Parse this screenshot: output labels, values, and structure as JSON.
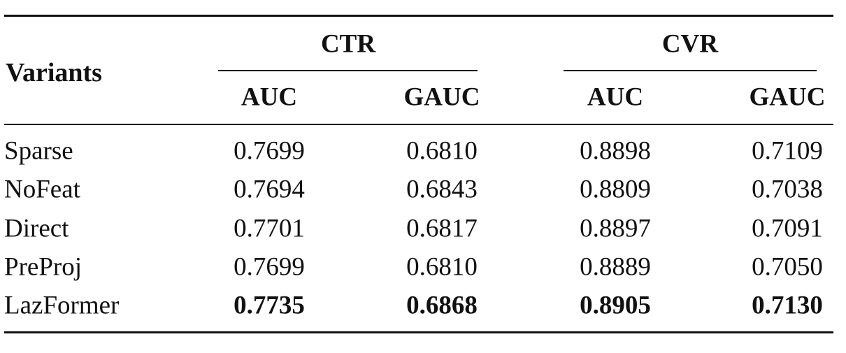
{
  "table": {
    "row_header": "Variants",
    "groups": [
      "CTR",
      "CVR"
    ],
    "columns": [
      "AUC",
      "GAUC",
      "AUC",
      "GAUC"
    ],
    "rows": [
      [
        "Sparse",
        "0.7699",
        "0.6810",
        "0.8898",
        "0.7109"
      ],
      [
        "NoFeat",
        "0.7694",
        "0.6843",
        "0.8809",
        "0.7038"
      ],
      [
        "Direct",
        "0.7701",
        "0.6817",
        "0.8897",
        "0.7091"
      ],
      [
        "PreProj",
        "0.7699",
        "0.6810",
        "0.8889",
        "0.7050"
      ],
      [
        "LazFormer",
        "0.7735",
        "0.6868",
        "0.8905",
        "0.7130"
      ]
    ]
  }
}
